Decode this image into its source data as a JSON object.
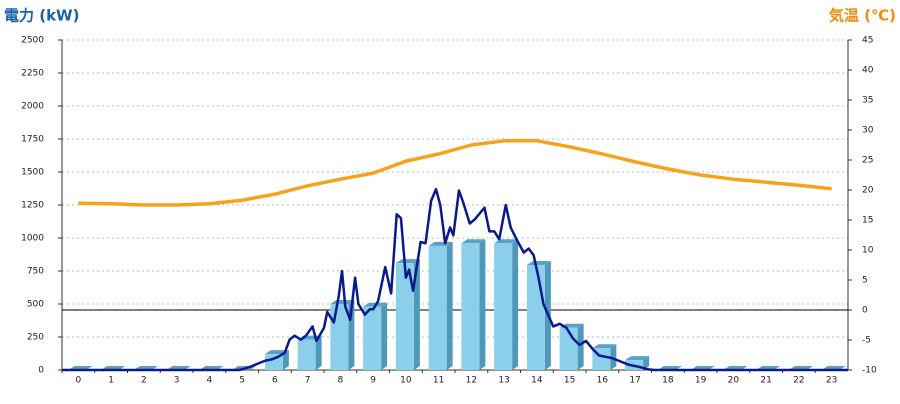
{
  "chart_data": {
    "type": "bar",
    "y_title": "電力 (kW)",
    "y2_title": "気温 (℃)",
    "categories": [
      "0",
      "1",
      "2",
      "3",
      "4",
      "5",
      "6",
      "7",
      "8",
      "9",
      "10",
      "11",
      "12",
      "13",
      "14",
      "15",
      "16",
      "17",
      "18",
      "19",
      "20",
      "21",
      "22",
      "23"
    ],
    "ylim": [
      0,
      2500
    ],
    "yticks": [
      0,
      250,
      500,
      750,
      1000,
      1250,
      1500,
      1750,
      2000,
      2250,
      2500
    ],
    "y2lim": [
      -10,
      45
    ],
    "y2ticks": [
      -10,
      -5,
      0,
      5,
      10,
      15,
      20,
      25,
      30,
      35,
      40,
      45
    ],
    "grid": true,
    "series": [
      {
        "type": "bar",
        "color": "#8ccfea",
        "values": [
          0,
          0,
          0,
          0,
          0,
          0,
          120,
          230,
          500,
          480,
          810,
          940,
          960,
          960,
          795,
          320,
          165,
          75,
          0,
          0,
          0,
          0,
          0,
          0
        ]
      },
      {
        "type": "line",
        "color": "#0a1a8c",
        "x": [
          -0.5,
          4.9,
          5.0,
          5.2,
          5.5,
          5.7,
          5.9,
          6.1,
          6.3,
          6.45,
          6.6,
          6.8,
          6.95,
          7.15,
          7.27,
          7.5,
          7.6,
          7.8,
          7.95,
          8.05,
          8.15,
          8.3,
          8.45,
          8.55,
          8.75,
          8.9,
          9.0,
          9.15,
          9.37,
          9.55,
          9.72,
          9.85,
          10.0,
          10.1,
          10.22,
          10.45,
          10.6,
          10.77,
          10.92,
          11.05,
          11.2,
          11.35,
          11.45,
          11.62,
          11.75,
          11.95,
          12.1,
          12.4,
          12.55,
          12.7,
          12.85,
          13.05,
          13.2,
          13.4,
          13.6,
          13.75,
          13.9,
          14.05,
          14.2,
          14.5,
          14.7,
          14.9,
          15.1,
          15.3,
          15.5,
          15.7,
          15.9,
          16.1,
          16.3,
          16.5,
          16.8,
          17.1,
          17.4,
          17.6,
          23.5
        ],
        "values": [
          0,
          0,
          5,
          20,
          50,
          70,
          80,
          100,
          130,
          230,
          260,
          230,
          260,
          330,
          220,
          320,
          440,
          360,
          560,
          750,
          480,
          380,
          700,
          500,
          420,
          460,
          460,
          520,
          780,
          580,
          1180,
          1150,
          700,
          760,
          600,
          970,
          960,
          1280,
          1370,
          1250,
          960,
          1080,
          1020,
          1360,
          1270,
          1110,
          1140,
          1230,
          1050,
          1050,
          990,
          1250,
          1080,
          980,
          890,
          920,
          870,
          700,
          500,
          330,
          350,
          320,
          240,
          190,
          220,
          160,
          110,
          100,
          90,
          70,
          40,
          25,
          5,
          0,
          0
        ]
      },
      {
        "type": "line",
        "axis": "y2",
        "color": "#f7a21b",
        "values": [
          17.8,
          17.7,
          17.5,
          17.5,
          17.7,
          18.3,
          19.3,
          20.7,
          21.8,
          22.8,
          24.8,
          26,
          27.5,
          28.2,
          28.2,
          27.2,
          26,
          24.7,
          23.5,
          22.5,
          21.8,
          21.3,
          20.8,
          20.2
        ]
      }
    ]
  }
}
